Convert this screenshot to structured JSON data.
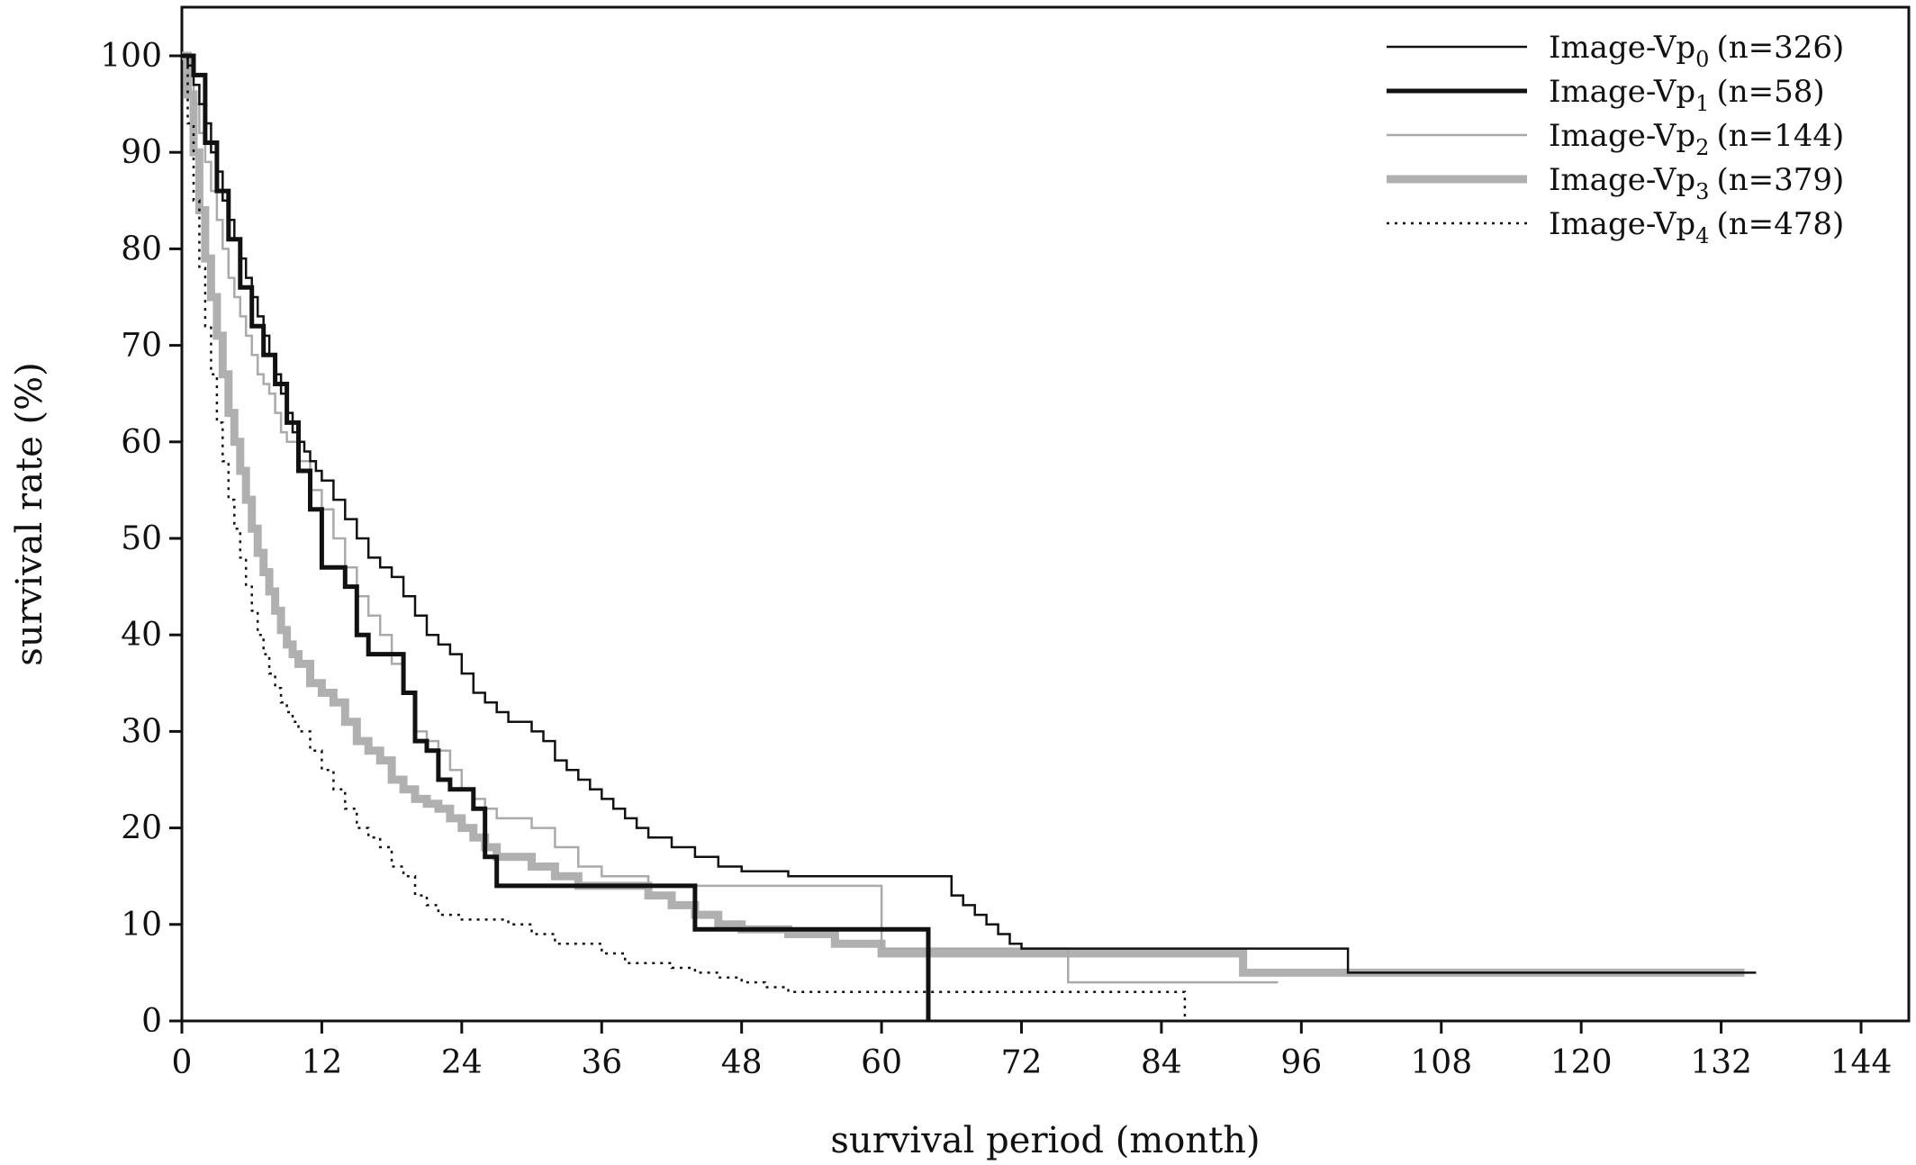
{
  "chart_data": {
    "type": "line",
    "subtype": "kaplan-meier step survival curves",
    "title": "",
    "xlabel": "survival period (month)",
    "ylabel": "survival rate (%)",
    "xlim": [
      0,
      150
    ],
    "ylim": [
      0,
      105
    ],
    "xticks": [
      0,
      12,
      24,
      36,
      48,
      60,
      72,
      84,
      96,
      108,
      120,
      132,
      144
    ],
    "yticks": [
      0,
      10,
      20,
      30,
      40,
      50,
      60,
      70,
      80,
      90,
      100
    ],
    "grid": false,
    "legend_position": "top-right",
    "series": [
      {
        "name": "Image-Vp",
        "subscript": "0",
        "n": "(n=326)",
        "color": "#111111",
        "style": "thin-solid",
        "x": [
          0,
          0.5,
          1,
          1.5,
          2,
          2.5,
          3,
          3.5,
          4,
          4.5,
          5,
          5.5,
          6,
          6.5,
          7,
          7.5,
          8,
          8.5,
          9,
          9.5,
          10,
          10.5,
          11,
          11.5,
          12,
          13,
          14,
          15,
          16,
          17,
          18,
          19,
          20,
          21,
          22,
          23,
          24,
          25,
          26,
          27,
          28,
          29,
          30,
          31,
          32,
          33,
          34,
          35,
          36,
          37,
          38,
          39,
          40,
          42,
          44,
          46,
          48,
          52,
          56,
          60,
          64,
          66,
          67,
          68,
          69,
          70,
          71,
          72,
          73,
          76,
          84,
          90,
          96,
          100,
          108,
          120,
          135
        ],
        "y": [
          100,
          99,
          97,
          95,
          93,
          90,
          88,
          85,
          83,
          81,
          79,
          77,
          75,
          73,
          71,
          69,
          67,
          65,
          63,
          61,
          60,
          59,
          58,
          57,
          56,
          54,
          52,
          50,
          48,
          47,
          46,
          44,
          42,
          40,
          39,
          38,
          36,
          34,
          33,
          32,
          31,
          31,
          30,
          29,
          27,
          26,
          25,
          24,
          23,
          22,
          21,
          20,
          19,
          18,
          17,
          16,
          15.5,
          15,
          15,
          15,
          15,
          13,
          12,
          11,
          10,
          9,
          8,
          7.5,
          7.5,
          7.5,
          7.5,
          7.5,
          7.5,
          5,
          5,
          5,
          5
        ]
      },
      {
        "name": "Image-Vp",
        "subscript": "1",
        "n": "(n=58)",
        "color": "#111111",
        "style": "thick-solid",
        "x": [
          0,
          1,
          2,
          3,
          4,
          5,
          6,
          7,
          8,
          9,
          10,
          11,
          12,
          13,
          14,
          15,
          16,
          17,
          18,
          19,
          20,
          21,
          22,
          23,
          24,
          25,
          26,
          27,
          28,
          30,
          34,
          36,
          40,
          44,
          48,
          52,
          56,
          60,
          64,
          64.01
        ],
        "y": [
          100,
          98,
          91,
          86,
          81,
          76,
          72,
          69,
          66,
          62,
          57,
          53,
          47,
          47,
          45,
          40,
          38,
          38,
          38,
          34,
          29,
          28,
          25,
          24,
          24,
          22,
          17,
          14,
          14,
          14,
          14,
          14,
          14,
          9.5,
          9.5,
          9.5,
          9.5,
          9.5,
          9.5,
          0
        ]
      },
      {
        "name": "Image-Vp",
        "subscript": "2",
        "n": "(n=144)",
        "color": "#aaaaaa",
        "style": "thin-solid",
        "x": [
          0,
          0.5,
          1,
          1.5,
          2,
          2.5,
          3,
          3.5,
          4,
          4.5,
          5,
          5.5,
          6,
          6.5,
          7,
          7.5,
          8,
          8.5,
          9,
          10,
          11,
          12,
          13,
          14,
          15,
          16,
          17,
          18,
          19,
          20,
          21,
          22,
          23,
          24,
          25,
          26,
          27,
          28,
          30,
          32,
          34,
          36,
          40,
          44,
          48,
          56,
          60,
          64,
          72,
          76,
          84,
          90,
          94
        ],
        "y": [
          100,
          98,
          95,
          92,
          89,
          86,
          83,
          80,
          77,
          75,
          73,
          71,
          69,
          67,
          66,
          65,
          63,
          61,
          60,
          58,
          55,
          53,
          50,
          47,
          44,
          42,
          40,
          37,
          34,
          30,
          29,
          28,
          26,
          24,
          23,
          22,
          21,
          21,
          20,
          18,
          16,
          15,
          14,
          14,
          14,
          14,
          7.5,
          7.5,
          7.5,
          4,
          4,
          4,
          4
        ]
      },
      {
        "name": "Image-Vp",
        "subscript": "3",
        "n": "(n=379)",
        "color": "#b0b0b0",
        "style": "thick-solid",
        "x": [
          0,
          0.5,
          1,
          1.5,
          2,
          2.5,
          3,
          3.5,
          4,
          4.5,
          5,
          5.5,
          6,
          6.5,
          7,
          7.5,
          8,
          8.5,
          9,
          9.5,
          10,
          11,
          12,
          13,
          14,
          15,
          16,
          17,
          18,
          19,
          20,
          21,
          22,
          23,
          24,
          25,
          26,
          27,
          28,
          30,
          32,
          34,
          36,
          38,
          40,
          42,
          44,
          46,
          48,
          52,
          56,
          60,
          64,
          72,
          84,
          90,
          91,
          100,
          110,
          120,
          134
        ],
        "y": [
          100,
          96,
          90,
          84,
          79,
          75,
          71,
          67,
          63,
          60,
          57,
          54,
          51,
          48.5,
          46.5,
          44.5,
          42.5,
          40.5,
          39,
          38,
          37,
          35,
          34,
          33,
          31,
          29,
          28,
          27,
          25,
          24,
          23,
          22.5,
          22,
          21,
          20,
          19,
          18,
          17,
          17,
          16,
          15,
          14,
          14,
          14,
          13,
          12,
          11,
          10,
          9.5,
          9,
          8,
          7,
          7,
          7,
          7,
          7,
          5,
          5,
          5,
          5,
          5
        ]
      },
      {
        "name": "Image-Vp",
        "subscript": "4",
        "n": "(n=478)",
        "color": "#111111",
        "style": "dotted",
        "x": [
          0,
          0.5,
          1,
          1.5,
          2,
          2.5,
          3,
          3.5,
          4,
          4.5,
          5,
          5.5,
          6,
          6.5,
          7,
          7.5,
          8,
          8.5,
          9,
          9.5,
          10,
          11,
          12,
          13,
          14,
          15,
          16,
          17,
          18,
          19,
          20,
          21,
          22,
          23,
          24,
          26,
          28,
          30,
          32,
          34,
          36,
          38,
          40,
          42,
          44,
          46,
          48,
          50,
          52,
          56,
          60,
          64,
          72,
          80,
          86,
          86.01
        ],
        "y": [
          100,
          93,
          85,
          78,
          72,
          67,
          62,
          58,
          54,
          51,
          48,
          45,
          42.5,
          40,
          38,
          36,
          34.5,
          33,
          32,
          31,
          30,
          28,
          26,
          24,
          22,
          20,
          19,
          18,
          16,
          15,
          13,
          12,
          11,
          11,
          10.5,
          10.5,
          10,
          9,
          8,
          8,
          7,
          6,
          6,
          5.5,
          5,
          4.5,
          4,
          3.5,
          3,
          3,
          3,
          3,
          3,
          3,
          3,
          0
        ]
      }
    ]
  }
}
